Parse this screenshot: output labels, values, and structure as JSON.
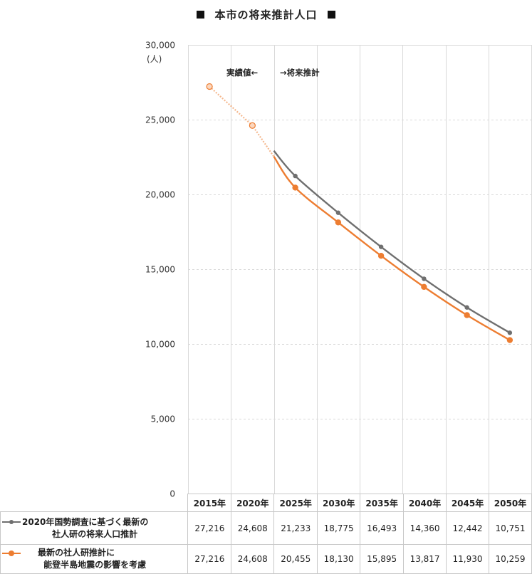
{
  "title": "本市の将来推計人口",
  "colors": {
    "series1": "#6f6f6f",
    "series2": "#ed7d31",
    "grid": "#d9d9d9"
  },
  "annotations": {
    "left": "実績値←",
    "right": "→将来推計"
  },
  "chart_data": {
    "type": "line",
    "title": "本市の将来推計人口",
    "ylabel": "(人)",
    "xlabel": "",
    "ylim": [
      0,
      30000
    ],
    "yticks": [
      "0",
      "5,000",
      "10,000",
      "15,000",
      "20,000",
      "25,000",
      "30,000"
    ],
    "ytick_values": [
      0,
      5000,
      10000,
      15000,
      20000,
      25000,
      30000
    ],
    "categories": [
      "2015年",
      "2020年",
      "2025年",
      "2030年",
      "2035年",
      "2040年",
      "2045年",
      "2050年"
    ],
    "grid": true,
    "legend_placement": "table-left",
    "series": [
      {
        "name_line1": "2020年国勢調査に基づく最新の",
        "name_line2": "社人研の将来人口推計",
        "values": [
          27216,
          24608,
          21233,
          18775,
          16493,
          14360,
          12442,
          10751
        ],
        "display": [
          "27,216",
          "24,608",
          "21,233",
          "18,775",
          "16,493",
          "14,360",
          "12,442",
          "10,751"
        ]
      },
      {
        "name_line1": "最新の社人研推計に",
        "name_line2": "能登半島地震の影響を考慮",
        "values": [
          27216,
          24608,
          20455,
          18130,
          15895,
          13817,
          11930,
          10259
        ],
        "display": [
          "27,216",
          "24,608",
          "20,455",
          "18,130",
          "15,895",
          "13,817",
          "11,930",
          "10,259"
        ]
      }
    ]
  }
}
